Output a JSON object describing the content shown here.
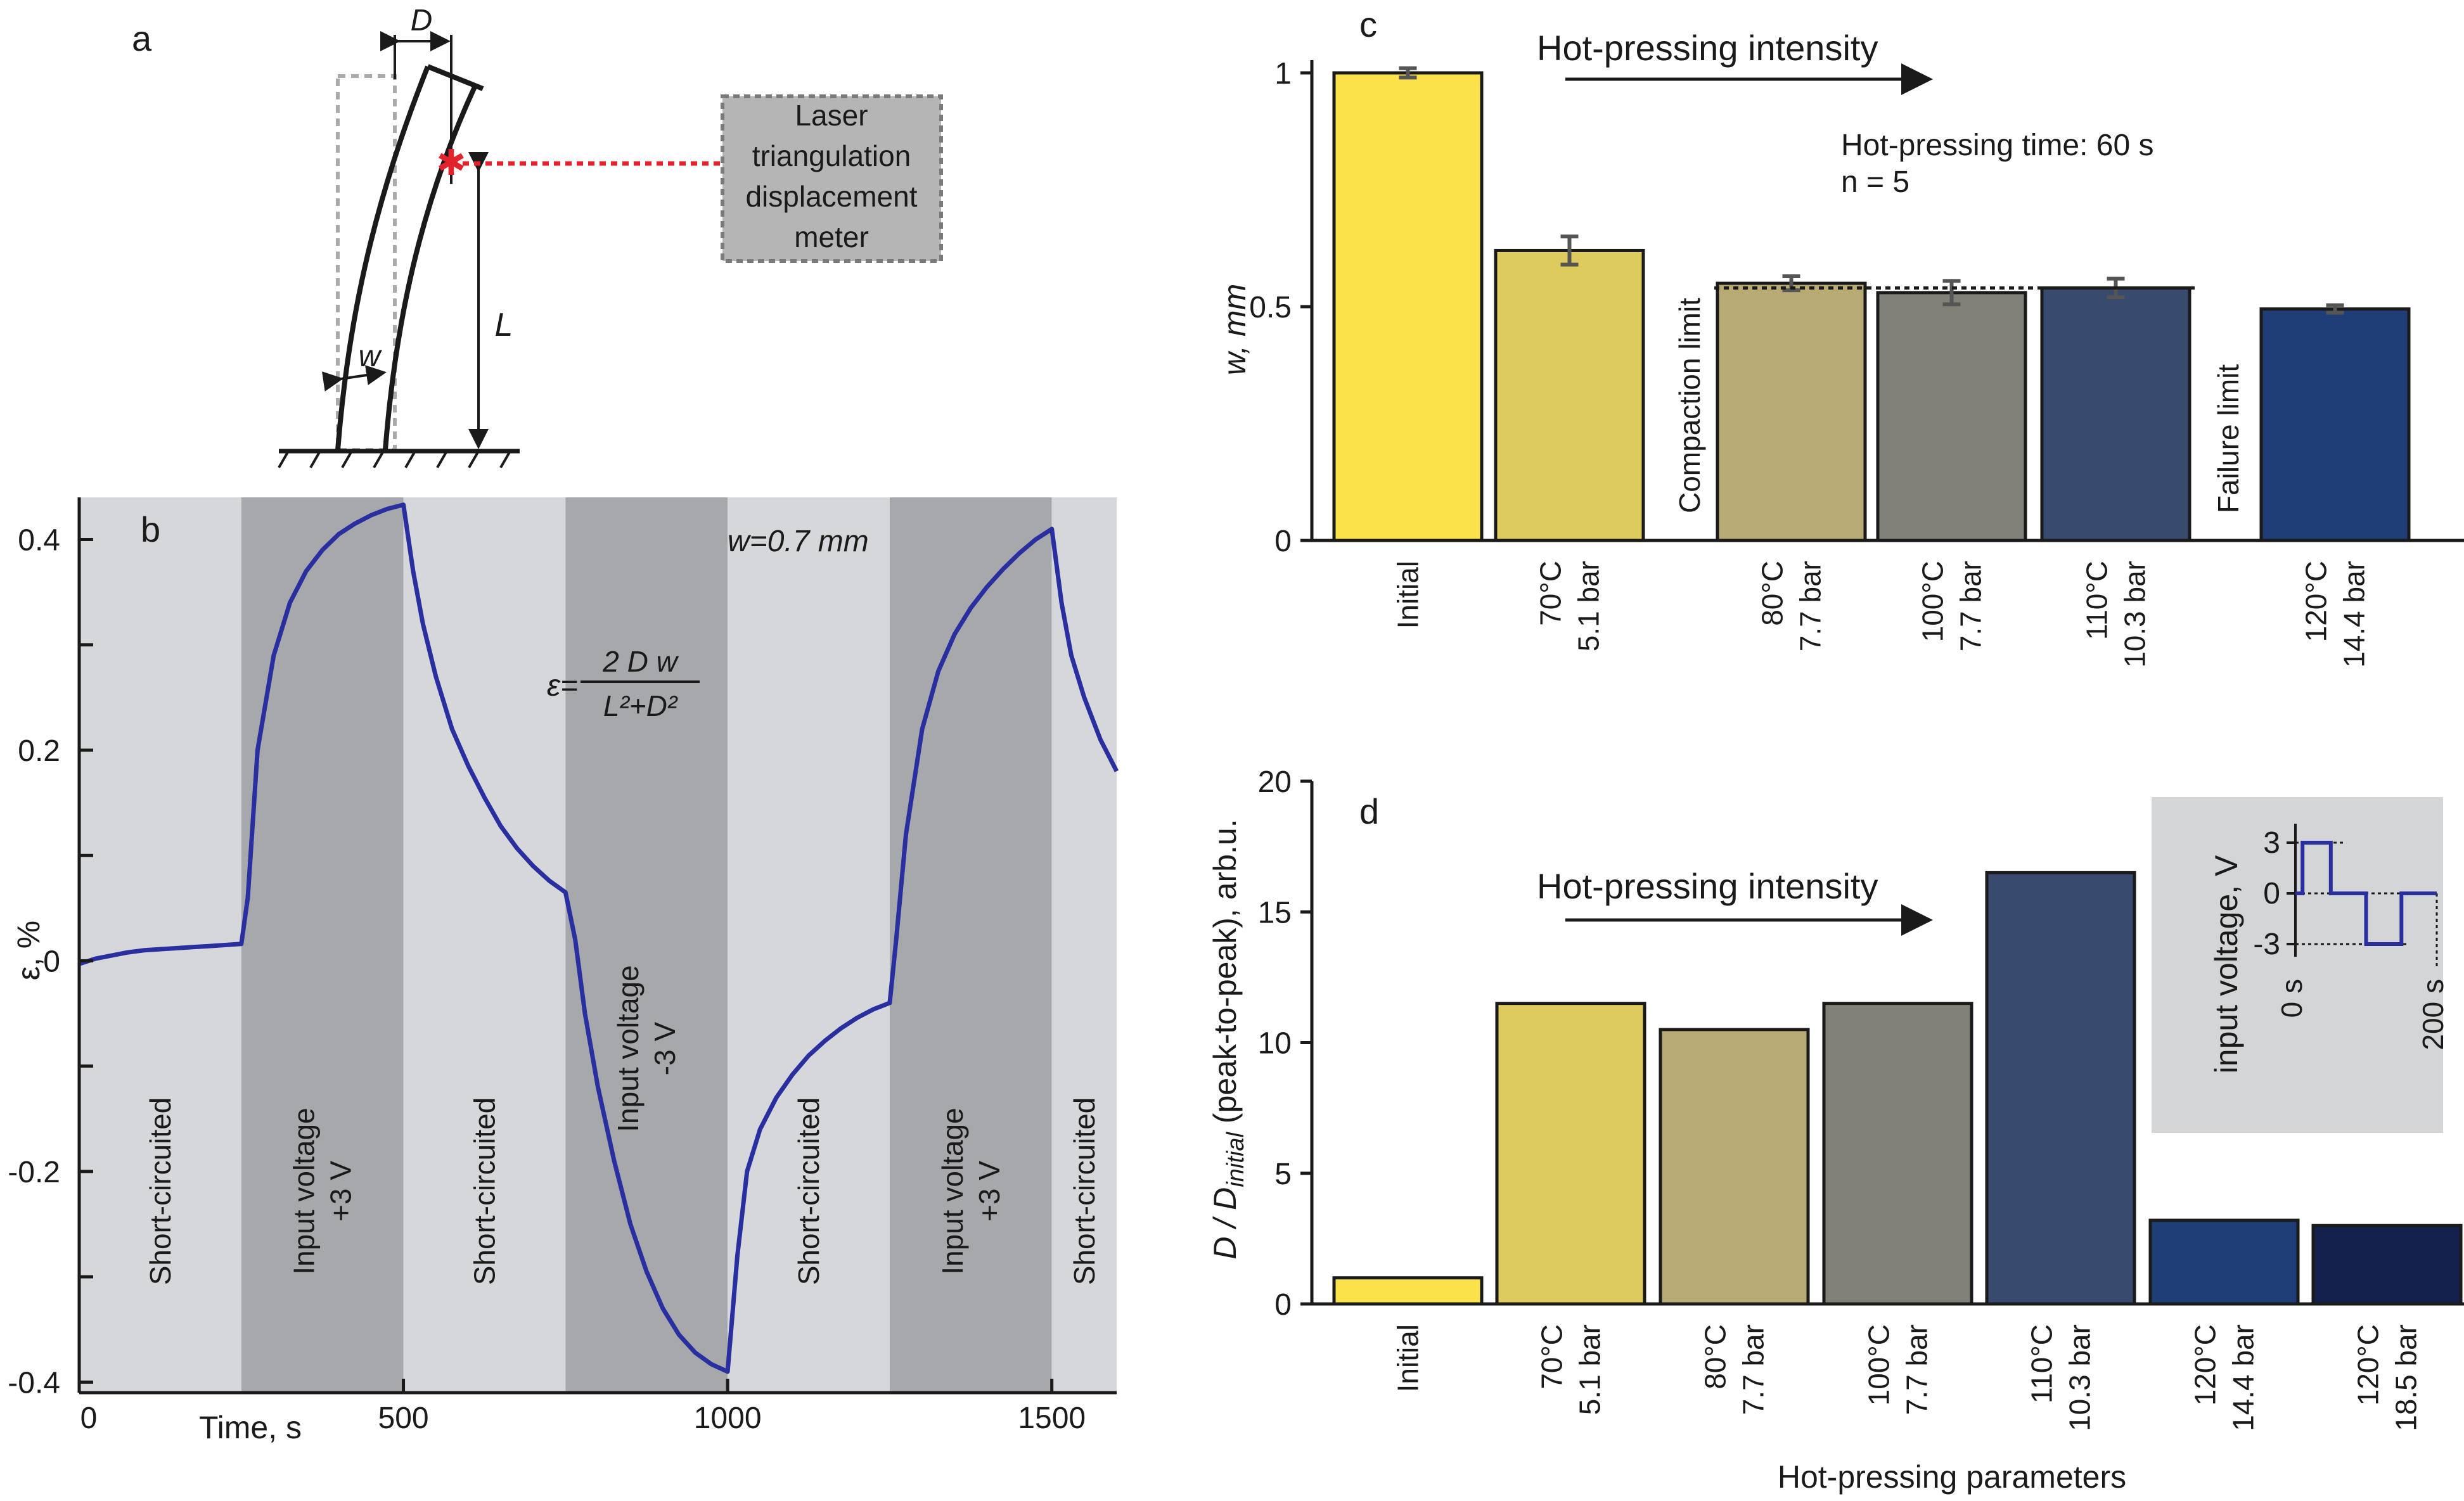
{
  "panel_a": {
    "label": "a",
    "d_label": "D",
    "l_label": "L",
    "w_label": "w",
    "laser_box": [
      "Laser",
      "triangulation",
      "displacement",
      "meter"
    ]
  },
  "chart_data": [
    {
      "id": "b",
      "type": "line",
      "panel_label": "b",
      "xlabel": "Time, s",
      "ylabel": "ε, %",
      "xlim": [
        0,
        1600
      ],
      "ylim": [
        -0.41,
        0.44
      ],
      "xticks": [
        0,
        500,
        1000,
        1500
      ],
      "yticks": [
        -0.4,
        -0.2,
        0,
        0.2,
        0.4
      ],
      "ytick_labels": [
        "-0.4",
        "-0.2",
        "0",
        "0.2",
        "0.4"
      ],
      "annotation": "w=0.7 mm",
      "formula": {
        "lhs": "ε=",
        "num": "2 D w",
        "den": "L²+D²"
      },
      "bands": [
        {
          "x0": 0,
          "x1": 250,
          "shade": "light",
          "label": [
            "Short-circuited"
          ]
        },
        {
          "x0": 250,
          "x1": 500,
          "shade": "dark",
          "label": [
            "Input voltage",
            "+3 V"
          ]
        },
        {
          "x0": 500,
          "x1": 750,
          "shade": "light",
          "label": [
            "Short-circuited"
          ]
        },
        {
          "x0": 750,
          "x1": 1000,
          "shade": "dark",
          "label": [
            "Input voltage",
            "-3 V"
          ]
        },
        {
          "x0": 1000,
          "x1": 1250,
          "shade": "light",
          "label": [
            "Short-circuited"
          ]
        },
        {
          "x0": 1250,
          "x1": 1500,
          "shade": "dark",
          "label": [
            "Input voltage",
            "+3 V"
          ]
        },
        {
          "x0": 1500,
          "x1": 1600,
          "shade": "light",
          "label": [
            "Short-circuited"
          ]
        }
      ],
      "series": [
        {
          "name": "strain",
          "x": [
            0,
            25,
            50,
            75,
            100,
            125,
            150,
            175,
            200,
            225,
            250,
            260,
            275,
            300,
            325,
            350,
            375,
            400,
            425,
            450,
            475,
            500,
            515,
            530,
            550,
            575,
            600,
            625,
            650,
            675,
            700,
            725,
            750,
            765,
            780,
            800,
            825,
            850,
            875,
            900,
            925,
            950,
            975,
            1000,
            1015,
            1030,
            1050,
            1075,
            1100,
            1125,
            1150,
            1175,
            1200,
            1225,
            1250,
            1260,
            1275,
            1300,
            1325,
            1350,
            1375,
            1400,
            1425,
            1450,
            1475,
            1500,
            1515,
            1530,
            1550,
            1575,
            1600
          ],
          "y": [
            -0.003,
            0.002,
            0.005,
            0.008,
            0.01,
            0.011,
            0.012,
            0.013,
            0.014,
            0.015,
            0.016,
            0.06,
            0.2,
            0.29,
            0.34,
            0.37,
            0.39,
            0.405,
            0.415,
            0.423,
            0.429,
            0.433,
            0.37,
            0.32,
            0.27,
            0.22,
            0.185,
            0.155,
            0.128,
            0.107,
            0.09,
            0.076,
            0.065,
            0.02,
            -0.05,
            -0.12,
            -0.19,
            -0.25,
            -0.295,
            -0.33,
            -0.355,
            -0.372,
            -0.383,
            -0.39,
            -0.28,
            -0.2,
            -0.16,
            -0.13,
            -0.108,
            -0.09,
            -0.076,
            -0.064,
            -0.054,
            -0.046,
            -0.04,
            0.02,
            0.12,
            0.22,
            0.275,
            0.31,
            0.335,
            0.355,
            0.372,
            0.387,
            0.4,
            0.41,
            0.34,
            0.29,
            0.25,
            0.21,
            0.18
          ]
        }
      ]
    },
    {
      "id": "c",
      "type": "bar",
      "panel_label": "c",
      "ylabel": "w, mm",
      "ylim": [
        0,
        1.0
      ],
      "yticks": [
        0,
        0.5,
        1
      ],
      "ytick_labels": [
        "0",
        "0.5",
        "1"
      ],
      "arrow_label": "Hot-pressing intensity",
      "info_lines": [
        "Hot-pressing time: 60 s",
        "n = 5"
      ],
      "limit_labels": [
        "Compaction limit",
        "Failure limit"
      ],
      "compaction_limit_value": 0.54,
      "categories": [
        [
          "Initial"
        ],
        [
          "70°C",
          "5.1 bar"
        ],
        [
          "80°C",
          "7.7 bar"
        ],
        [
          "100°C",
          "7.7 bar"
        ],
        [
          "110°C",
          "10.3 bar"
        ],
        [
          "120°C",
          "14.4 bar"
        ]
      ],
      "values": [
        1.0,
        0.62,
        0.55,
        0.53,
        0.54,
        0.495
      ],
      "errors": [
        0.01,
        0.03,
        0.015,
        0.025,
        0.02,
        0.008
      ],
      "colors": [
        "#fbe14a",
        "#decb5e",
        "#b8aa74",
        "#828177",
        "#384a6d",
        "#1f3d77"
      ]
    },
    {
      "id": "d",
      "type": "bar",
      "panel_label": "d",
      "ylabel_main": "D / D",
      "ylabel_sub": "initial",
      "ylabel_tail": " (peak-to-peak), arb.u.",
      "xlabel": "Hot-pressing parameters",
      "ylim": [
        0,
        20
      ],
      "yticks": [
        0,
        5,
        10,
        15,
        20
      ],
      "ytick_labels": [
        "0",
        "5",
        "10",
        "15",
        "20"
      ],
      "arrow_label": "Hot-pressing intensity",
      "categories": [
        [
          "Initial"
        ],
        [
          "70°C",
          "5.1 bar"
        ],
        [
          "80°C",
          "7.7 bar"
        ],
        [
          "100°C",
          "7.7 bar"
        ],
        [
          "110°C",
          "10.3 bar"
        ],
        [
          "120°C",
          "14.4 bar"
        ],
        [
          "120°C",
          "18.5 bar"
        ]
      ],
      "values": [
        1.0,
        11.5,
        10.5,
        11.5,
        16.5,
        3.2,
        3.0
      ],
      "colors": [
        "#fbe14a",
        "#decb5e",
        "#b8aa74",
        "#828177",
        "#384a6d",
        "#1f3d77",
        "#15214d"
      ],
      "inset": {
        "ylabel": "input voltage, V",
        "yticks": [
          "3",
          "0",
          "-3"
        ],
        "xticks": [
          "0 s",
          "200 s"
        ],
        "waveform_t": [
          0,
          10,
          10,
          50,
          50,
          100,
          100,
          150,
          150,
          200
        ],
        "waveform_v": [
          0,
          0,
          3,
          3,
          0,
          0,
          -3,
          -3,
          0,
          0
        ]
      }
    }
  ]
}
